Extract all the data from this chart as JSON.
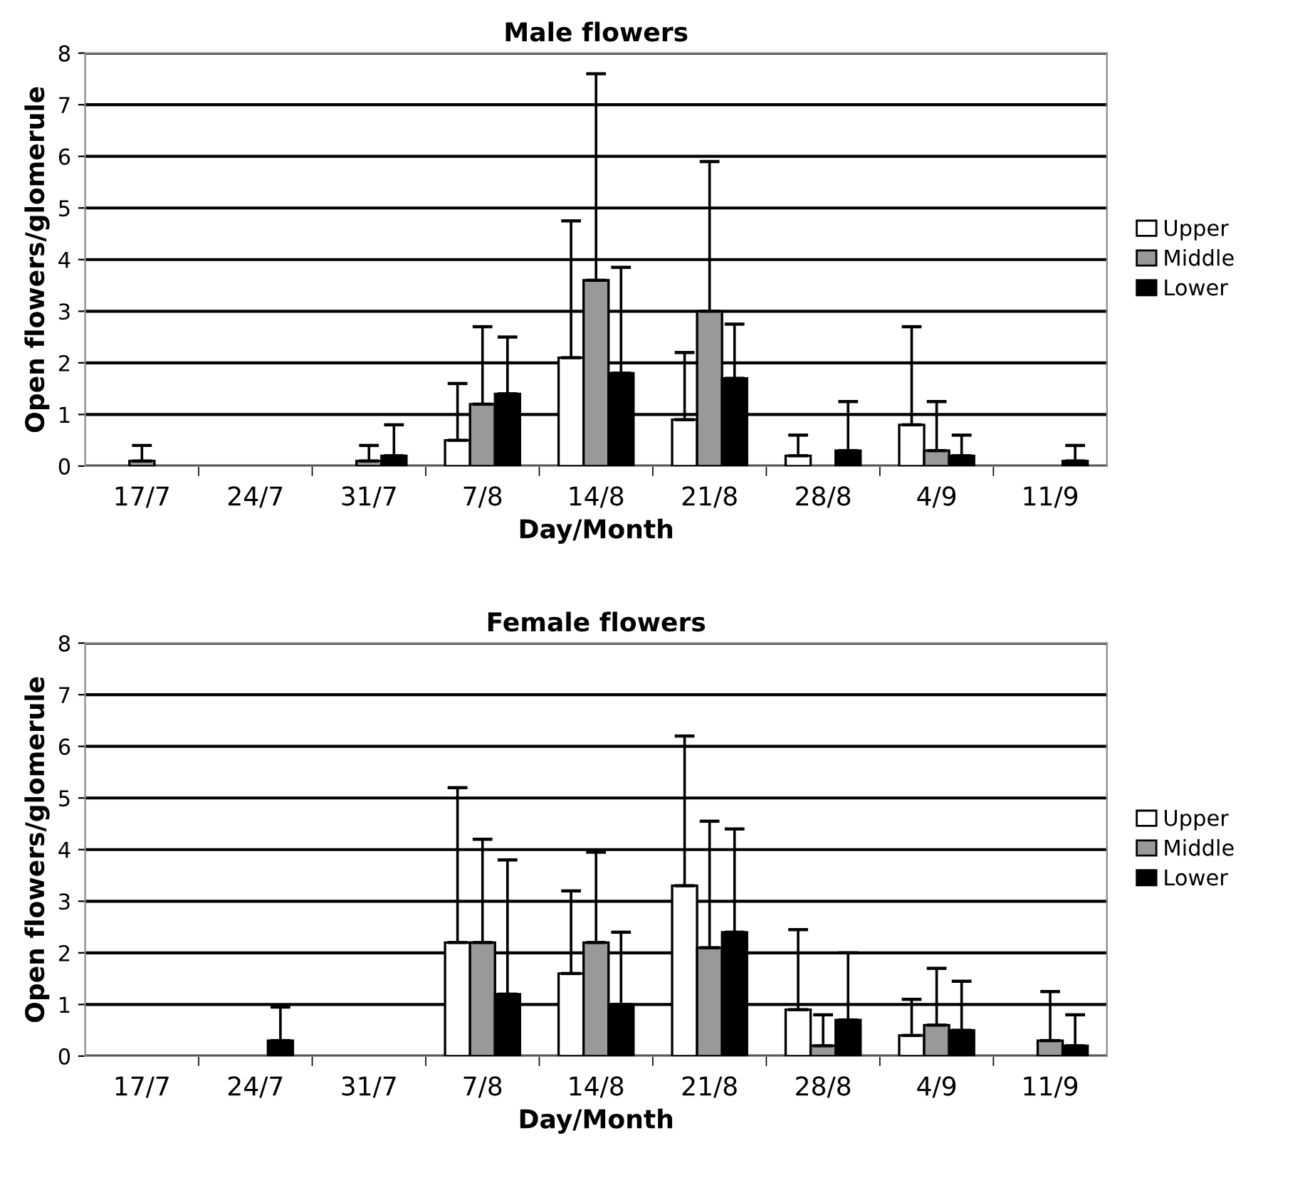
{
  "chart_data": [
    {
      "type": "bar",
      "title": "Male flowers",
      "xlabel": "Day/Month",
      "ylabel": "Open flowers/glomerule",
      "categories": [
        "17/7",
        "24/7",
        "31/7",
        "7/8",
        "14/8",
        "21/8",
        "28/8",
        "4/9",
        "11/9"
      ],
      "series": [
        {
          "name": "Upper",
          "color": "#ffffff",
          "values": [
            0,
            0,
            0,
            0.5,
            2.1,
            0.9,
            0.2,
            0.8,
            0
          ],
          "errors": [
            null,
            null,
            null,
            [
              0.5,
              1.6
            ],
            [
              2.1,
              4.75
            ],
            [
              0.9,
              2.2
            ],
            [
              0.2,
              0.6
            ],
            [
              0.8,
              2.7
            ],
            null
          ]
        },
        {
          "name": "Middle",
          "color": "#999999",
          "values": [
            0.1,
            0,
            0.1,
            1.2,
            3.6,
            3.0,
            0,
            0.3,
            0
          ],
          "errors": [
            [
              0.1,
              0.4
            ],
            null,
            [
              0.1,
              0.4
            ],
            [
              1.2,
              2.7
            ],
            [
              3.6,
              7.6
            ],
            [
              3.0,
              5.9
            ],
            null,
            [
              0.3,
              1.25
            ],
            null
          ]
        },
        {
          "name": "Lower",
          "color": "#000000",
          "values": [
            0,
            0,
            0.2,
            1.4,
            1.8,
            1.7,
            0.3,
            0.2,
            0.1
          ],
          "errors": [
            null,
            null,
            [
              0.2,
              0.8
            ],
            [
              1.4,
              2.5
            ],
            [
              1.8,
              3.85
            ],
            [
              1.7,
              2.75
            ],
            [
              0.3,
              1.25
            ],
            [
              0.2,
              0.6
            ],
            [
              0.1,
              0.4
            ]
          ]
        }
      ],
      "ylim": [
        0,
        8
      ],
      "yticks": [
        0,
        1,
        2,
        3,
        4,
        5,
        6,
        7,
        8
      ],
      "grid": "y",
      "legend": "right"
    },
    {
      "type": "bar",
      "title": "Female flowers",
      "xlabel": "Day/Month",
      "ylabel": "Open flowers/glomerule",
      "categories": [
        "17/7",
        "24/7",
        "31/7",
        "7/8",
        "14/8",
        "21/8",
        "28/8",
        "4/9",
        "11/9"
      ],
      "series": [
        {
          "name": "Upper",
          "color": "#ffffff",
          "values": [
            0,
            0,
            0,
            2.2,
            1.6,
            3.3,
            0.9,
            0.4,
            0
          ],
          "errors": [
            null,
            null,
            null,
            [
              2.2,
              5.2
            ],
            [
              1.6,
              3.2
            ],
            [
              3.3,
              6.2
            ],
            [
              0.9,
              2.45
            ],
            [
              0.4,
              1.1
            ],
            null
          ]
        },
        {
          "name": "Middle",
          "color": "#999999",
          "values": [
            0,
            0,
            0,
            2.2,
            2.2,
            2.1,
            0.2,
            0.6,
            0.3
          ],
          "errors": [
            null,
            null,
            null,
            [
              2.2,
              4.2
            ],
            [
              2.2,
              3.95
            ],
            [
              2.1,
              4.55
            ],
            [
              0.2,
              0.8
            ],
            [
              0.6,
              1.7
            ],
            [
              0.3,
              1.25
            ]
          ]
        },
        {
          "name": "Lower",
          "color": "#000000",
          "values": [
            0,
            0.3,
            0,
            1.2,
            1.0,
            2.4,
            0.7,
            0.5,
            0.2
          ],
          "errors": [
            null,
            [
              0.3,
              0.95
            ],
            null,
            [
              1.2,
              3.8
            ],
            [
              1.0,
              2.4
            ],
            [
              2.4,
              4.4
            ],
            [
              0.7,
              2.0
            ],
            [
              0.5,
              1.45
            ],
            [
              0.2,
              0.8
            ]
          ]
        }
      ],
      "ylim": [
        0,
        8
      ],
      "yticks": [
        0,
        1,
        2,
        3,
        4,
        5,
        6,
        7,
        8
      ],
      "grid": "y",
      "legend": "right"
    }
  ]
}
